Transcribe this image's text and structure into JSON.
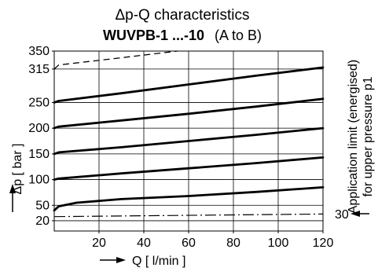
{
  "chart_data": {
    "type": "line",
    "title": "Δp-Q characteristics",
    "subtitle_bold": "WUVPB-1 ...-10",
    "subtitle_rest": "(A to B)",
    "xlabel": "Q [ l/min ]",
    "ylabel": "Δp [ bar ]",
    "xlim": [
      0,
      120
    ],
    "ylim": [
      0,
      350
    ],
    "x_ticks": [
      20,
      40,
      60,
      80,
      100,
      120
    ],
    "y_ticks": [
      20,
      50,
      100,
      150,
      200,
      250,
      315,
      350
    ],
    "grid": true,
    "series": [
      {
        "style": "solid",
        "x": [
          0,
          2,
          10,
          30,
          60,
          90,
          120
        ],
        "y": [
          40,
          48,
          55,
          62,
          68,
          76,
          85
        ]
      },
      {
        "style": "solid",
        "x": [
          0,
          2,
          30,
          60,
          90,
          120
        ],
        "y": [
          100,
          102,
          112,
          122,
          132,
          143
        ]
      },
      {
        "style": "solid",
        "x": [
          0,
          2,
          30,
          60,
          90,
          120
        ],
        "y": [
          150,
          153,
          163,
          175,
          187,
          200
        ]
      },
      {
        "style": "solid",
        "x": [
          0,
          2,
          30,
          60,
          90,
          120
        ],
        "y": [
          200,
          203,
          215,
          228,
          242,
          257
        ]
      },
      {
        "style": "solid",
        "x": [
          0,
          2,
          30,
          60,
          90,
          120
        ],
        "y": [
          250,
          253,
          268,
          285,
          302,
          318
        ]
      },
      {
        "style": "dashed",
        "x": [
          0,
          2,
          30,
          55
        ],
        "y": [
          315,
          323,
          337,
          350
        ]
      },
      {
        "style": "dashdot",
        "x": [
          0,
          120
        ],
        "y": [
          28,
          33
        ]
      }
    ],
    "annotation": {
      "side_text_line1": "Application limit (energised)",
      "side_text_line2": "for upper pressure p1",
      "limit_value": "30"
    }
  }
}
